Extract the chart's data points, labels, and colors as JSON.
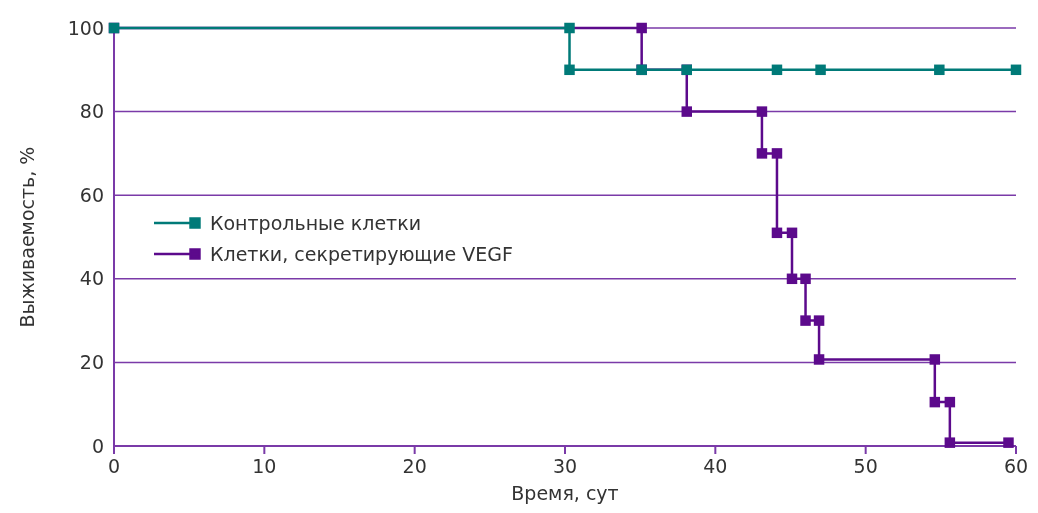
{
  "chart_data": {
    "type": "step",
    "xlabel": "Время, сут",
    "ylabel": "Выживаемость, %",
    "xlim": [
      0,
      60
    ],
    "ylim": [
      0,
      100
    ],
    "xticks": [
      0,
      10,
      20,
      30,
      40,
      50,
      60
    ],
    "yticks": [
      0,
      20,
      40,
      60,
      80,
      100
    ],
    "grid": "y",
    "legend": "left",
    "marker": "square",
    "line_style": "solid",
    "series": [
      {
        "name": "Контрольные клетки",
        "color": "#007a78",
        "x": [
          0,
          30.3,
          30.3,
          35.1,
          38.1,
          44.1,
          47.0,
          54.9,
          60
        ],
        "values": [
          100,
          100,
          90,
          90,
          90,
          90,
          90,
          90,
          90
        ]
      },
      {
        "name": "Клетки, секретирующие VEGF",
        "color": "#5c0a8c",
        "x": [
          0,
          35.1,
          35.1,
          38.1,
          38.1,
          43.1,
          43.1,
          44.1,
          44.1,
          45.1,
          45.1,
          46.0,
          46.0,
          46.9,
          46.9,
          54.6,
          54.6,
          55.6,
          55.6,
          59.5
        ],
        "values": [
          100,
          100,
          90,
          90,
          80,
          80,
          70,
          70,
          51,
          51,
          40,
          40,
          30,
          30,
          20.7,
          20.7,
          10.5,
          10.5,
          0.8,
          0.8
        ]
      }
    ]
  }
}
